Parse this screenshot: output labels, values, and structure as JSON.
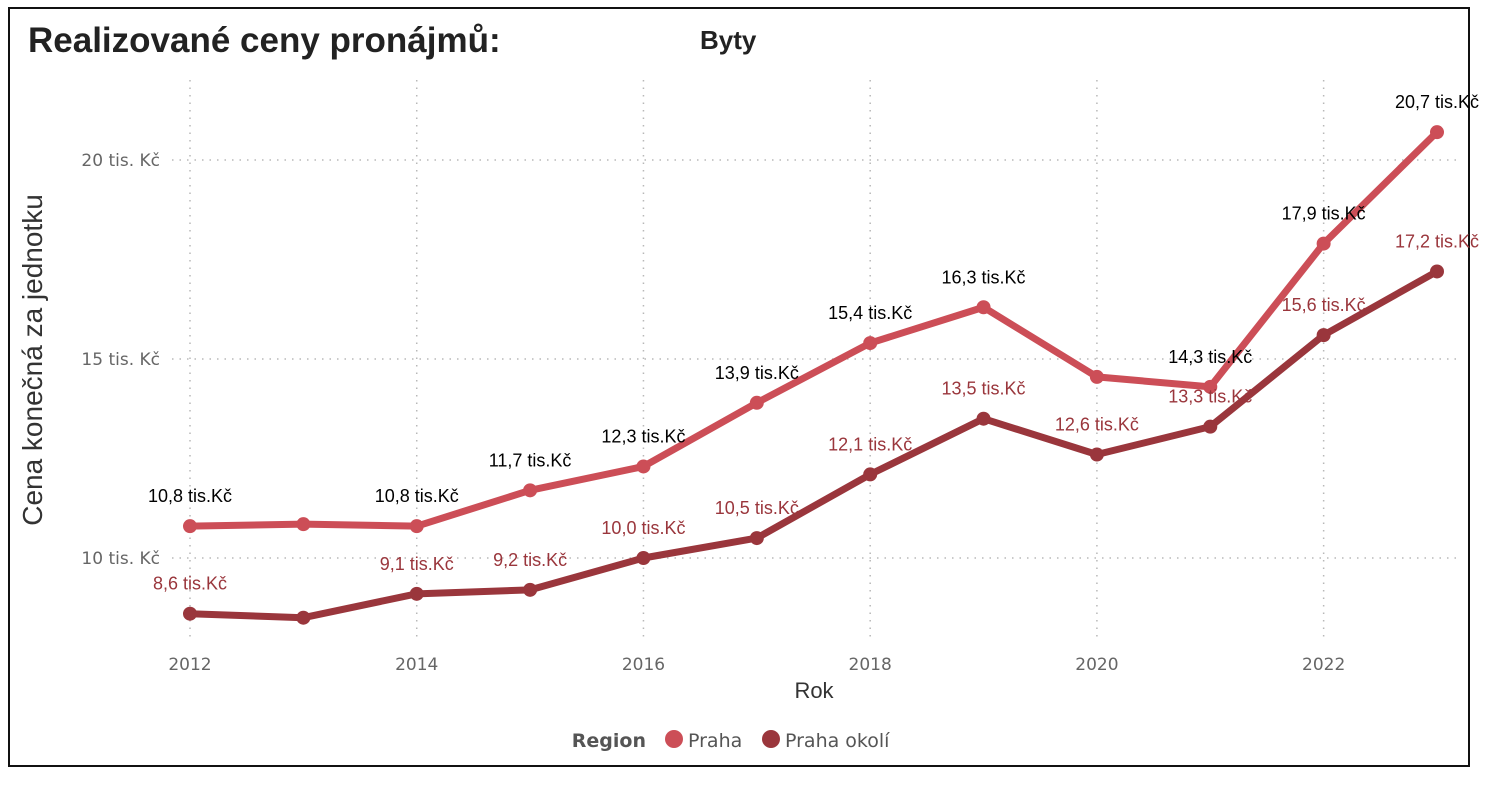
{
  "header": {
    "title": "Realizované ceny pronájmů:",
    "subtitle": "Byty"
  },
  "chart_data": {
    "type": "line",
    "x": [
      2012,
      2013,
      2014,
      2015,
      2016,
      2017,
      2018,
      2019,
      2020,
      2021,
      2022,
      2023
    ],
    "xlabel": "Rok",
    "ylabel": "Cena konečná za jednotku",
    "xlim": [
      2011.8,
      2023.3
    ],
    "ylim": [
      7.8,
      22.4
    ],
    "x_ticks": [
      2012,
      2014,
      2016,
      2018,
      2020,
      2022
    ],
    "x_tick_labels": [
      "2012",
      "2014",
      "2016",
      "2018",
      "2020",
      "2022"
    ],
    "y_ticks": [
      10,
      15,
      20
    ],
    "y_tick_labels": [
      "10 tis. Kč",
      "15 tis. Kč",
      "20 tis. Kč"
    ],
    "grid": true,
    "legend": {
      "title": "Region",
      "placement": "bottom-center"
    },
    "series": [
      {
        "name": "Praha",
        "color": "#cc4e57",
        "values": [
          10.8,
          10.85,
          10.8,
          11.7,
          12.3,
          13.9,
          15.4,
          16.3,
          14.55,
          14.3,
          17.9,
          20.7
        ],
        "labels": [
          "10,8 tis.Kč",
          "",
          "10,8 tis.Kč",
          "11,7 tis.Kč",
          "12,3 tis.Kč",
          "13,9 tis.Kč",
          "15,4 tis.Kč",
          "16,3 tis.Kč",
          "",
          "14,3 tis.Kč",
          "17,9 tis.Kč",
          "20,7 tis.Kč"
        ],
        "label_color": "#000000"
      },
      {
        "name": "Praha okolí",
        "color": "#9a363c",
        "values": [
          8.6,
          8.5,
          9.1,
          9.2,
          10.0,
          10.5,
          12.1,
          13.5,
          12.6,
          13.3,
          15.6,
          17.2
        ],
        "labels": [
          "8,6 tis.Kč",
          "",
          "9,1 tis.Kč",
          "9,2 tis.Kč",
          "10,0 tis.Kč",
          "10,5 tis.Kč",
          "12,1 tis.Kč",
          "13,5 tis.Kč",
          "12,6 tis.Kč",
          "13,3 tis.Kč",
          "15,6 tis.Kč",
          "17,2 tis.Kč"
        ],
        "label_color": "#9a363c"
      }
    ]
  }
}
